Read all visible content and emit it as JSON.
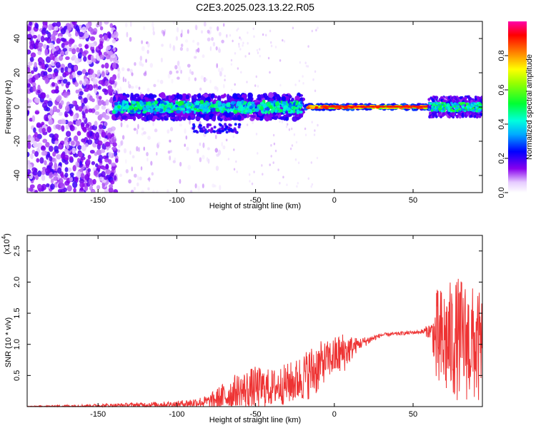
{
  "title": "C2E3.2025.023.13.22.R05",
  "chart_data": [
    {
      "type": "heatmap",
      "xlabel": "Height of straight line (km)",
      "ylabel": "Frequency (Hz)",
      "xlim": [
        -195,
        94
      ],
      "ylim": [
        -50,
        50
      ],
      "xticks": [
        -150,
        -100,
        -50,
        0,
        50
      ],
      "yticks": [
        -40,
        -20,
        0,
        20,
        40
      ],
      "colorbar": {
        "label": "Normalized spectral amplitude",
        "range": [
          0.0,
          1.0
        ],
        "ticks": [
          0.0,
          0.2,
          0.4,
          0.6,
          0.8
        ]
      },
      "description_regions": [
        {
          "x_range": [
            -195,
            -140
          ],
          "freq_range": [
            -50,
            50
          ],
          "amplitude": "0.1-0.25"
        },
        {
          "x_range": [
            -140,
            -20
          ],
          "freq_range": [
            -8,
            8
          ],
          "amplitude": "0.2-0.5"
        },
        {
          "x_range": [
            -20,
            60
          ],
          "freq_range": [
            -2,
            2
          ],
          "amplitude": "0.8-1.0"
        },
        {
          "x_range": [
            60,
            94
          ],
          "freq_range": [
            -8,
            8
          ],
          "amplitude": "0.2-0.5"
        }
      ]
    },
    {
      "type": "line",
      "xlabel": "Height of straight line (km)",
      "ylabel": "SNR (10 * v/v)",
      "y_scale_label": "(x10",
      "y_scale_exp": "4",
      "xlim": [
        -195,
        94
      ],
      "ylim": [
        0,
        2.75
      ],
      "xticks": [
        -150,
        -100,
        -50,
        0,
        50
      ],
      "yticks": [
        0.5,
        1.0,
        1.5,
        2.0,
        2.5
      ],
      "color": "#ee3333",
      "envelope": [
        {
          "x": -195,
          "base": 0.0,
          "amp": 0.01
        },
        {
          "x": -140,
          "base": 0.02,
          "amp": 0.03
        },
        {
          "x": -100,
          "base": 0.04,
          "amp": 0.05
        },
        {
          "x": -80,
          "base": 0.08,
          "amp": 0.1
        },
        {
          "x": -65,
          "base": 0.2,
          "amp": 0.3
        },
        {
          "x": -50,
          "base": 0.3,
          "amp": 0.35
        },
        {
          "x": -40,
          "base": 0.3,
          "amp": 0.3
        },
        {
          "x": -25,
          "base": 0.4,
          "amp": 0.35
        },
        {
          "x": -12,
          "base": 0.6,
          "amp": 0.45
        },
        {
          "x": -5,
          "base": 0.75,
          "amp": 0.3
        },
        {
          "x": 5,
          "base": 0.85,
          "amp": 0.35
        },
        {
          "x": 15,
          "base": 1.0,
          "amp": 0.1
        },
        {
          "x": 30,
          "base": 1.15,
          "amp": 0.03
        },
        {
          "x": 55,
          "base": 1.2,
          "amp": 0.03
        },
        {
          "x": 62,
          "base": 1.22,
          "amp": 0.15
        },
        {
          "x": 65,
          "base": 1.0,
          "amp": 0.9
        },
        {
          "x": 80,
          "base": 1.1,
          "amp": 1.0
        },
        {
          "x": 94,
          "base": 0.9,
          "amp": 0.9
        }
      ]
    }
  ]
}
